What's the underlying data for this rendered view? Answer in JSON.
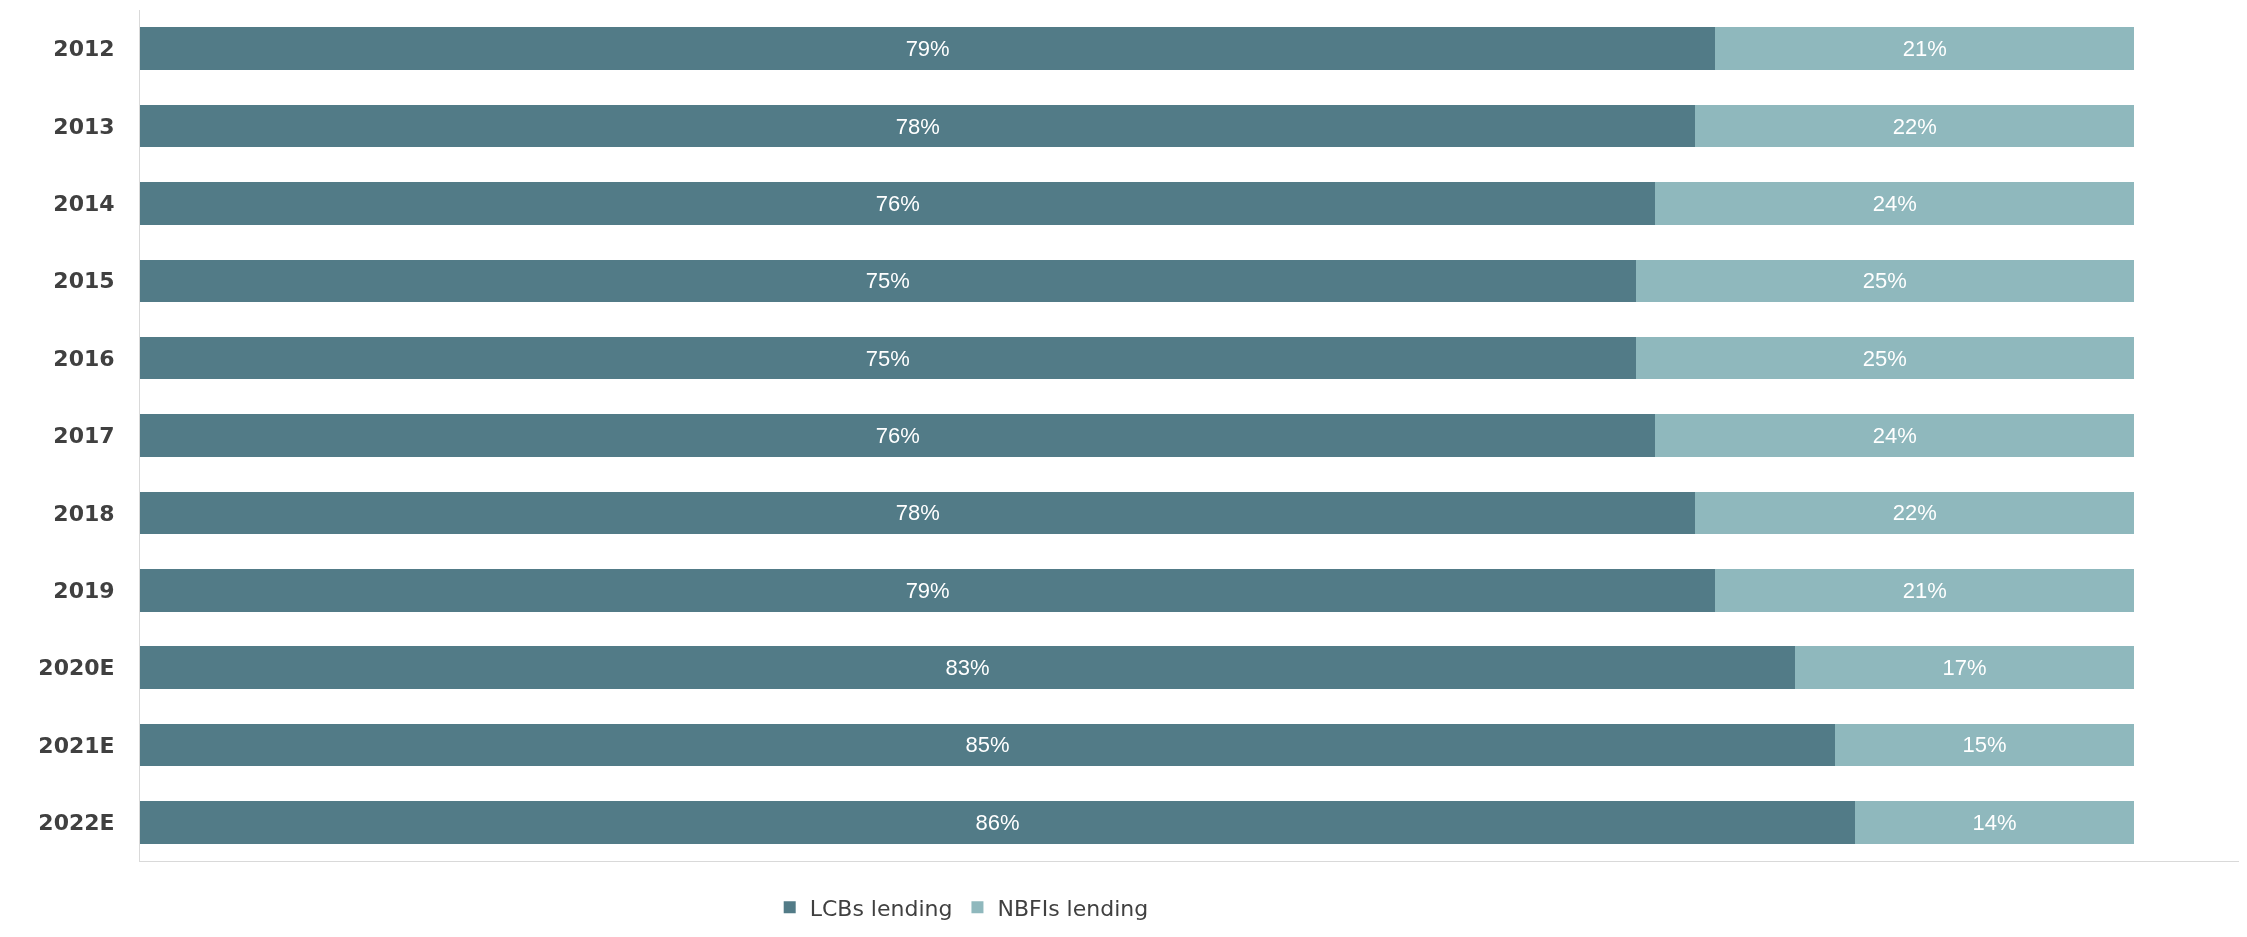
{
  "chart_data": {
    "type": "bar",
    "orientation": "horizontal",
    "stacked": true,
    "categories": [
      "2012",
      "2013",
      "2014",
      "2015",
      "2016",
      "2017",
      "2018",
      "2019",
      "2020E",
      "2021E",
      "2022E"
    ],
    "series": [
      {
        "name": "LCBs lending",
        "color": "#527b87",
        "values": [
          79,
          78,
          76,
          75,
          75,
          76,
          78,
          79,
          83,
          85,
          86
        ],
        "value_labels": [
          "79%",
          "78%",
          "76%",
          "75%",
          "75%",
          "76%",
          "78%",
          "79%",
          "83%",
          "85%",
          "86%"
        ]
      },
      {
        "name": "NBFIs lending",
        "color": "#8fb8bd",
        "values": [
          21,
          22,
          24,
          25,
          25,
          24,
          22,
          21,
          17,
          15,
          14
        ],
        "value_labels": [
          "21%",
          "22%",
          "24%",
          "25%",
          "25%",
          "24%",
          "22%",
          "21%",
          "17%",
          "15%",
          "14%"
        ]
      }
    ],
    "tick_labels": "y",
    "legend": "bottom"
  }
}
